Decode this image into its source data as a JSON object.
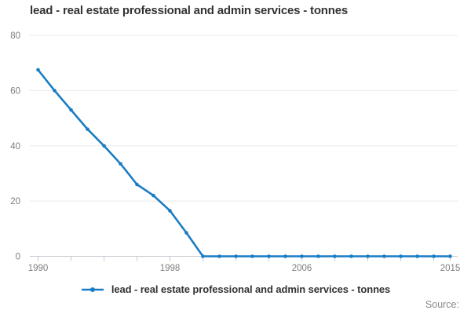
{
  "chart_data": {
    "type": "line",
    "title": "lead - real estate professional and admin services - tonnes",
    "xlabel": "",
    "ylabel": "",
    "x": [
      1990,
      1991,
      1992,
      1993,
      1994,
      1995,
      1996,
      1997,
      1998,
      1999,
      2000,
      2001,
      2002,
      2003,
      2004,
      2005,
      2006,
      2007,
      2008,
      2009,
      2010,
      2011,
      2012,
      2013,
      2014,
      2015
    ],
    "series": [
      {
        "name": "lead - real estate professional and admin services - tonnes",
        "values": [
          67.5,
          60,
          53,
          46,
          40,
          33.5,
          26,
          22,
          16.5,
          8.5,
          0,
          0,
          0,
          0,
          0,
          0,
          0,
          0,
          0,
          0,
          0,
          0,
          0,
          0,
          0,
          0
        ]
      }
    ],
    "xlim": [
      1990,
      2015
    ],
    "ylim": [
      0,
      80
    ],
    "yticks": [
      0,
      20,
      40,
      60,
      80
    ],
    "xticks_minor": [
      1990,
      1992,
      1994,
      1996,
      1998,
      2000,
      2002,
      2004,
      2006,
      2008,
      2010,
      2012,
      2014,
      2015
    ],
    "xticks_labeled": [
      1990,
      1998,
      2006,
      2015
    ],
    "grid": "horizontal",
    "legend_position": "bottom",
    "line_color": "#1a7dc3",
    "marker": "circle",
    "grid_color": "#e8e8e8",
    "axis_color": "#c5cad0",
    "tick_label_color": "#7d7d7d"
  },
  "footer": {
    "source_label": "Source:"
  }
}
